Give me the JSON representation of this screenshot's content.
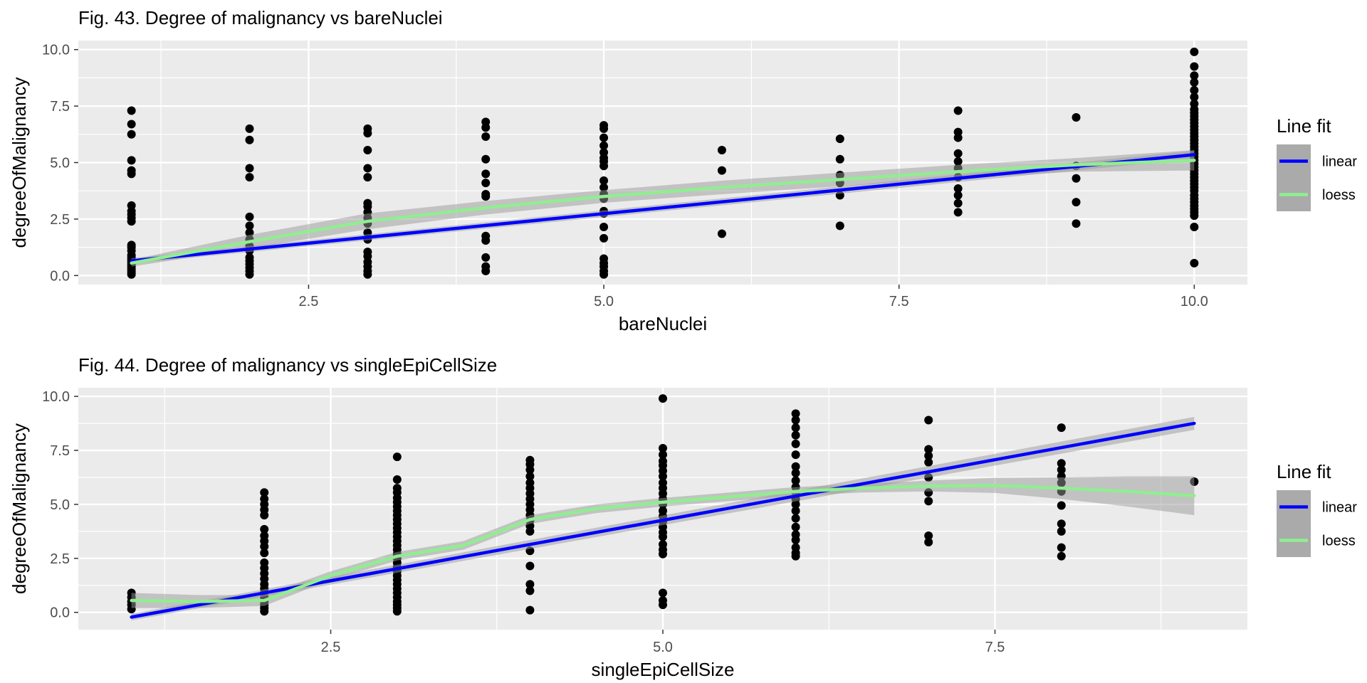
{
  "chart_data": [
    {
      "type": "scatter",
      "title": "Fig. 43. Degree of malignancy vs bareNuclei",
      "xlabel": "bareNuclei",
      "ylabel": "degreeOfMalignancy",
      "xlim": [
        0.55,
        10.45
      ],
      "ylim": [
        -0.4,
        10.4
      ],
      "x_ticks": [
        2.5,
        5.0,
        7.5,
        10.0
      ],
      "x_tick_labels": [
        "2.5",
        "5.0",
        "7.5",
        "10.0"
      ],
      "y_ticks": [
        0,
        2.5,
        5,
        7.5,
        10
      ],
      "y_tick_labels": [
        "0.0",
        "2.5",
        "5.0",
        "7.5",
        "10.0"
      ],
      "grid": true,
      "points": [
        {
          "x": 1,
          "ys": [
            0.05,
            0.12,
            0.2,
            0.3,
            0.4,
            0.5,
            0.6,
            0.7,
            0.8,
            0.9,
            1.1,
            1.25,
            1.35,
            2.4,
            2.55,
            2.7,
            2.85,
            3.1,
            4.5,
            4.65,
            5.1,
            6.25,
            6.7,
            7.3
          ]
        },
        {
          "x": 2,
          "ys": [
            0.05,
            0.2,
            0.35,
            0.5,
            0.65,
            0.8,
            1.1,
            1.3,
            1.6,
            1.9,
            2.2,
            2.6,
            4.35,
            4.75,
            6.0,
            6.5
          ]
        },
        {
          "x": 3,
          "ys": [
            0.05,
            0.2,
            0.4,
            0.6,
            0.85,
            1.05,
            1.6,
            1.9,
            2.3,
            2.55,
            2.8,
            3.05,
            3.2,
            4.35,
            4.75,
            5.55,
            6.3,
            6.5
          ]
        },
        {
          "x": 4,
          "ys": [
            0.2,
            0.4,
            0.8,
            1.55,
            1.75,
            3.5,
            3.6,
            4.1,
            4.5,
            5.15,
            6.15,
            6.55,
            6.8
          ]
        },
        {
          "x": 5,
          "ys": [
            0.05,
            0.2,
            0.4,
            0.55,
            0.75,
            1.65,
            2.15,
            2.75,
            2.85,
            3.4,
            3.6,
            3.9,
            4.2,
            4.85,
            5.05,
            5.2,
            5.45,
            5.75,
            6.1,
            6.5,
            6.65
          ]
        },
        {
          "x": 6,
          "ys": [
            1.85,
            4.65,
            5.55
          ]
        },
        {
          "x": 7,
          "ys": [
            2.2,
            3.55,
            4.1,
            4.45,
            5.15,
            6.05
          ]
        },
        {
          "x": 8,
          "ys": [
            2.8,
            3.2,
            3.55,
            3.85,
            4.35,
            4.75,
            5.05,
            5.4,
            6.1,
            6.35,
            7.3
          ]
        },
        {
          "x": 9,
          "ys": [
            2.3,
            3.25,
            4.3,
            4.85,
            7.0
          ]
        },
        {
          "x": 10,
          "ys": [
            0.55,
            2.15,
            2.65,
            2.8,
            2.95,
            3.1,
            3.25,
            3.4,
            3.55,
            3.75,
            3.9,
            4.05,
            4.2,
            4.35,
            4.5,
            4.65,
            4.8,
            4.95,
            5.1,
            5.25,
            5.4,
            5.55,
            5.7,
            5.85,
            6.0,
            6.15,
            6.3,
            6.45,
            6.6,
            6.75,
            6.9,
            7.05,
            7.2,
            7.35,
            7.6,
            7.9,
            8.2,
            8.55,
            8.85,
            9.25,
            9.9
          ]
        }
      ],
      "series": [
        {
          "name": "linear",
          "color": "#0000ff",
          "x": [
            1,
            10
          ],
          "y": [
            0.65,
            5.35
          ],
          "band_half_width": [
            0.12,
            0.18
          ]
        },
        {
          "name": "loess",
          "color": "#90ee90",
          "x": [
            1,
            2,
            3,
            4,
            5,
            6,
            7,
            8,
            9,
            10
          ],
          "y": [
            0.55,
            1.5,
            2.4,
            3.0,
            3.5,
            3.9,
            4.25,
            4.6,
            4.9,
            5.1
          ],
          "band_half_width": [
            0.15,
            0.3,
            0.35,
            0.3,
            0.28,
            0.3,
            0.3,
            0.3,
            0.3,
            0.45
          ]
        }
      ],
      "legend": {
        "title": "Line fit",
        "position": "right",
        "entries": [
          "linear",
          "loess"
        ]
      }
    },
    {
      "type": "scatter",
      "title": "Fig. 44. Degree of malignancy vs singleEpiCellSize",
      "xlabel": "singleEpiCellSize",
      "ylabel": "degreeOfMalignancy",
      "xlim": [
        0.6,
        9.4
      ],
      "ylim": [
        -0.8,
        10.4
      ],
      "x_ticks": [
        2.5,
        5.0,
        7.5
      ],
      "x_tick_labels": [
        "2.5",
        "5.0",
        "7.5"
      ],
      "y_ticks": [
        0,
        2.5,
        5,
        7.5,
        10
      ],
      "y_tick_labels": [
        "0.0",
        "2.5",
        "5.0",
        "7.5",
        "10.0"
      ],
      "grid": true,
      "points": [
        {
          "x": 1,
          "ys": [
            0.15,
            0.35,
            0.5,
            0.7,
            0.9
          ]
        },
        {
          "x": 2,
          "ys": [
            0.05,
            0.2,
            0.35,
            0.5,
            0.7,
            0.9,
            1.1,
            1.3,
            1.55,
            1.8,
            2.05,
            2.3,
            2.75,
            3.05,
            3.3,
            3.55,
            3.85,
            4.5,
            4.75,
            5.0,
            5.25,
            5.55
          ]
        },
        {
          "x": 3,
          "ys": [
            0.05,
            0.2,
            0.35,
            0.5,
            0.7,
            0.9,
            1.1,
            1.3,
            1.5,
            1.7,
            1.9,
            2.1,
            2.3,
            2.5,
            2.7,
            2.9,
            3.1,
            3.3,
            3.5,
            3.7,
            3.9,
            4.1,
            4.3,
            4.5,
            4.7,
            4.9,
            5.1,
            5.3,
            5.55,
            5.75,
            6.15,
            7.2
          ]
        },
        {
          "x": 4,
          "ys": [
            0.1,
            1.0,
            1.3,
            2.15,
            2.85,
            3.75,
            4.0,
            4.25,
            4.5,
            4.75,
            5.0,
            5.25,
            5.5,
            5.75,
            6.0,
            6.3,
            6.6,
            6.85,
            7.05
          ]
        },
        {
          "x": 5,
          "ys": [
            0.35,
            0.55,
            0.9,
            2.7,
            2.9,
            3.15,
            3.5,
            3.7,
            3.95,
            4.2,
            4.45,
            4.7,
            5.0,
            5.25,
            5.5,
            5.75,
            6.0,
            6.3,
            6.55,
            6.8,
            7.0,
            7.3,
            7.6,
            9.9
          ]
        },
        {
          "x": 6,
          "ys": [
            2.6,
            2.75,
            3.0,
            3.35,
            3.6,
            3.95,
            4.35,
            4.7,
            5.0,
            5.25,
            5.55,
            5.8,
            6.1,
            6.45,
            6.75,
            7.3,
            7.8,
            8.2,
            8.55,
            8.9,
            9.2
          ]
        },
        {
          "x": 7,
          "ys": [
            3.25,
            3.55,
            5.15,
            5.55,
            6.25,
            6.95,
            7.25,
            7.55,
            8.9
          ]
        },
        {
          "x": 8,
          "ys": [
            2.6,
            3.0,
            3.75,
            4.1,
            4.95,
            5.6,
            6.0,
            6.3,
            6.6,
            6.9,
            8.55
          ]
        },
        {
          "x": 9,
          "ys": [
            6.05
          ]
        }
      ],
      "series": [
        {
          "name": "linear",
          "color": "#0000ff",
          "x": [
            1,
            9
          ],
          "y": [
            -0.22,
            8.75
          ],
          "band_half_width": [
            0.15,
            0.3
          ]
        },
        {
          "name": "loess",
          "color": "#90ee90",
          "x": [
            1,
            1.5,
            2,
            2.5,
            3,
            3.5,
            4,
            4.5,
            5,
            5.5,
            6,
            6.5,
            7,
            7.5,
            8,
            8.5,
            9
          ],
          "y": [
            0.55,
            0.5,
            0.55,
            1.7,
            2.6,
            3.1,
            4.3,
            4.8,
            5.1,
            5.35,
            5.6,
            5.75,
            5.85,
            5.88,
            5.75,
            5.6,
            5.4
          ],
          "band_half_width": [
            0.35,
            0.3,
            0.25,
            0.2,
            0.2,
            0.2,
            0.2,
            0.2,
            0.2,
            0.2,
            0.2,
            0.2,
            0.25,
            0.35,
            0.5,
            0.7,
            0.9
          ]
        }
      ],
      "legend": {
        "title": "Line fit",
        "position": "right",
        "entries": [
          "linear",
          "loess"
        ]
      }
    }
  ]
}
